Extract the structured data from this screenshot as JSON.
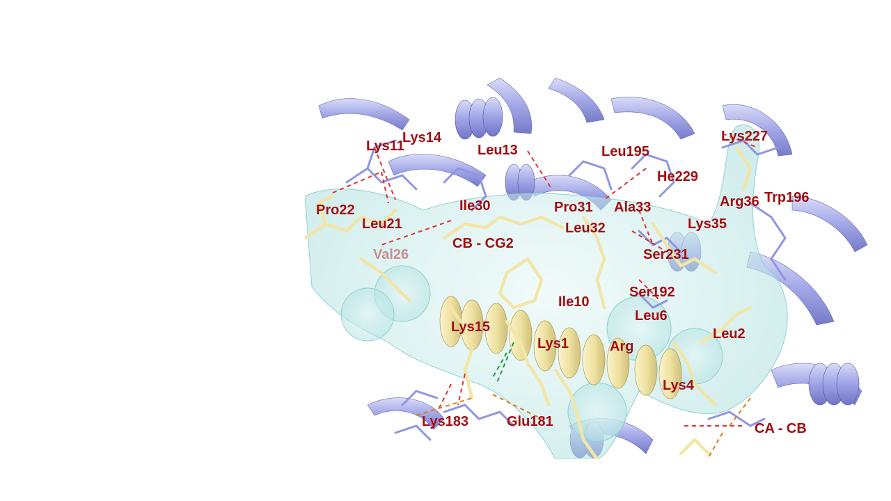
{
  "scene": {
    "colors": {
      "ligand": "#f2e6a6",
      "protein": "#a3a8ea",
      "surface": "#bfe9e8",
      "label": "#a10d10",
      "hbond_red": "#e03030",
      "hbond_green": "#1d9a3a",
      "hbond_orange": "#e07a10"
    },
    "labels": [
      {
        "text": "Lys14"
      },
      {
        "text": "Lys11"
      },
      {
        "text": "Leu13"
      },
      {
        "text": "Leu195"
      },
      {
        "text": "Lys227"
      },
      {
        "text": "He229"
      },
      {
        "text": "Trp196"
      },
      {
        "text": "Arg36"
      },
      {
        "text": "Pro22"
      },
      {
        "text": "Ile30"
      },
      {
        "text": "Pro31"
      },
      {
        "text": "Ala33"
      },
      {
        "text": "Leu21"
      },
      {
        "text": "Leu32"
      },
      {
        "text": "Lys35"
      },
      {
        "text": "CB - CG2"
      },
      {
        "text": "Val26"
      },
      {
        "text": "Ser231"
      },
      {
        "text": "Ser192"
      },
      {
        "text": "Ile10"
      },
      {
        "text": "Leu6"
      },
      {
        "text": "Lys15"
      },
      {
        "text": "Lys1"
      },
      {
        "text": "Arg"
      },
      {
        "text": "Leu2"
      },
      {
        "text": "Lys4"
      },
      {
        "text": "Lys183"
      },
      {
        "text": "Glu181"
      },
      {
        "text": "CA - CB"
      }
    ]
  }
}
